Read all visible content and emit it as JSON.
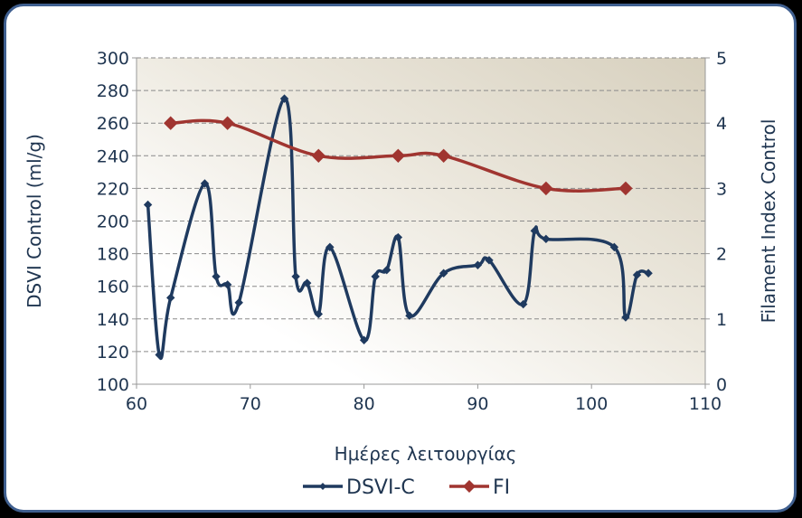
{
  "chart_data": {
    "type": "line",
    "title": "",
    "xlabel": "Ημέρες λειτουργίας",
    "ylabel": "DSVI Control (ml/g)",
    "y2label": "Filament Index Control",
    "xlim": [
      60,
      110
    ],
    "ylim": [
      100,
      300
    ],
    "y2lim": [
      0,
      5
    ],
    "x_ticks": [
      60,
      70,
      80,
      90,
      100,
      110
    ],
    "y_ticks": [
      100,
      120,
      140,
      160,
      180,
      200,
      220,
      240,
      260,
      280,
      300
    ],
    "y2_ticks": [
      0,
      1,
      2,
      3,
      4,
      5
    ],
    "grid": "horizontal dashed",
    "legend_position": "bottom",
    "series": [
      {
        "name": "DSVI-C",
        "axis": "left",
        "color": "#1f3a5f",
        "marker": "diamond-small",
        "x": [
          61,
          62,
          63,
          66,
          67,
          68,
          69,
          73,
          74,
          75,
          76,
          77,
          80,
          81,
          82,
          83,
          84,
          87,
          90,
          91,
          94,
          95,
          96,
          102,
          103,
          104,
          105
        ],
        "y": [
          210,
          118,
          153,
          223,
          166,
          161,
          150,
          275,
          166,
          162,
          143,
          184,
          127,
          166,
          170,
          190,
          142,
          168,
          173,
          176,
          149,
          194,
          189,
          184,
          141,
          167,
          168
        ]
      },
      {
        "name": "FI",
        "axis": "right",
        "color": "#a03530",
        "marker": "diamond-large",
        "x": [
          63,
          68,
          76,
          83,
          87,
          96,
          103
        ],
        "y": [
          4,
          4,
          3.5,
          3.5,
          3.5,
          3,
          3
        ]
      }
    ]
  }
}
